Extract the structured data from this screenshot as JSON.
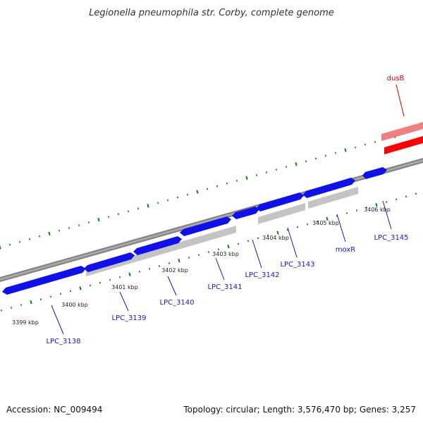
{
  "title": "Legionella pneumophila str. Corby, complete genome",
  "footer": {
    "accession": "Accession: NC_009494",
    "stats": "Topology: circular; Length: 3,576,470 bp; Genes: 3,257"
  },
  "colors": {
    "forward_gene": "#1010e8",
    "reverse_gene": "#c4c4c4",
    "highlight_gene": "#ff0000",
    "highlight_shadow": "#f08080",
    "backbone": "#808080",
    "tick": "#1a7a1a",
    "gene_label": "#1a1ab4",
    "highlight_label": "#cc0000"
  },
  "ticks": [
    {
      "label": "3399 kbp"
    },
    {
      "label": "3400 kbp"
    },
    {
      "label": "3401 kbp"
    },
    {
      "label": "3402 kbp"
    },
    {
      "label": "3403 kbp"
    },
    {
      "label": "3404 kbp"
    },
    {
      "label": "3405 kbp"
    },
    {
      "label": "3406 kbp"
    }
  ],
  "genes": [
    {
      "label": "LPC_3138",
      "strand": "forward"
    },
    {
      "label": "LPC_3139",
      "strand": "reverse"
    },
    {
      "label": "LPC_3140",
      "strand": "forward"
    },
    {
      "label": "LPC_3141",
      "strand": "forward"
    },
    {
      "label": "LPC_3142",
      "strand": "forward"
    },
    {
      "label": "LPC_3143",
      "strand": "forward"
    },
    {
      "label": "moxR",
      "strand": "forward"
    },
    {
      "label": "LPC_3145",
      "strand": "forward"
    },
    {
      "label": "dusB",
      "strand": "reverse",
      "highlight": true
    }
  ]
}
